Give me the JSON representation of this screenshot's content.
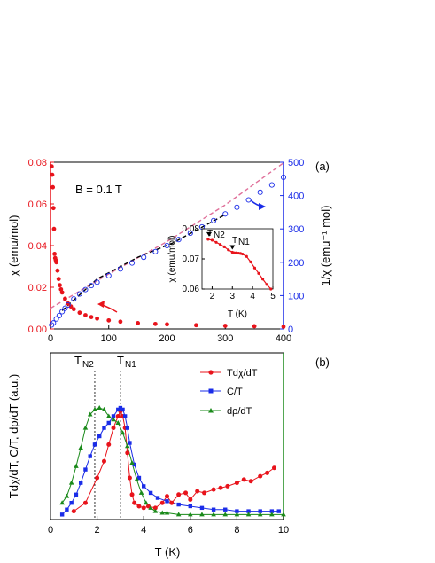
{
  "chart_data": [
    {
      "panel": "(a)",
      "type": "scatter",
      "annotation": "B = 0.1 T",
      "xlim": [
        0,
        400
      ],
      "xticks": [
        "0",
        "100",
        "200",
        "300",
        "400"
      ],
      "ylim_left": [
        0,
        0.08
      ],
      "yticks_left": [
        "0.00",
        "0.02",
        "0.04",
        "0.06",
        "0.08"
      ],
      "ylabel_left": "χ (emu/mol)",
      "ylim_right": [
        0,
        500
      ],
      "yticks_right": [
        "0",
        "100",
        "200",
        "300",
        "400",
        "500"
      ],
      "ylabel_right": "1/χ (emu⁻¹ mol)",
      "colors": {
        "chi": "#e8131b",
        "inv": "#1a2ce8",
        "fit_pink": "#e0709a",
        "fit_black": "#000000"
      },
      "series": [
        {
          "axis": "left",
          "x": [
            2,
            3,
            4,
            5,
            6,
            7,
            8,
            9,
            10,
            12,
            14,
            16,
            18,
            20,
            25,
            30,
            35,
            40,
            50,
            60,
            70,
            80,
            100,
            120,
            150,
            180,
            200,
            250,
            300,
            350,
            400
          ],
          "y": [
            0.078,
            0.074,
            0.068,
            0.058,
            0.048,
            0.036,
            0.034,
            0.033,
            0.032,
            0.028,
            0.024,
            0.021,
            0.019,
            0.0175,
            0.0145,
            0.0122,
            0.0108,
            0.0095,
            0.0078,
            0.0066,
            0.0057,
            0.005,
            0.0041,
            0.0035,
            0.0028,
            0.0024,
            0.0022,
            0.0018,
            0.0015,
            0.0013,
            0.0011
          ]
        },
        {
          "axis": "right",
          "x": [
            2,
            5,
            10,
            15,
            20,
            25,
            30,
            40,
            50,
            60,
            70,
            80,
            100,
            120,
            140,
            160,
            180,
            200,
            220,
            240,
            260,
            280,
            300,
            320,
            340,
            360,
            380,
            400
          ],
          "y": [
            12,
            18,
            30,
            40,
            52,
            62,
            72,
            90,
            105,
            118,
            130,
            140,
            160,
            180,
            198,
            215,
            232,
            250,
            268,
            287,
            306,
            325,
            345,
            365,
            387,
            410,
            432,
            455
          ]
        },
        {
          "axis": "right",
          "x": [
            0,
            100,
            200,
            300,
            400
          ],
          "y": [
            62,
            165,
            262,
            372,
            498
          ]
        },
        {
          "axis": "right",
          "x": [
            20,
            80,
            150,
            210,
            300
          ],
          "y": [
            55,
            150,
            215,
            258,
            343
          ]
        }
      ],
      "inset": {
        "type": "line",
        "xlabel": "T (K)",
        "ylabel": "χ (emu/mol)",
        "xlim": [
          1.5,
          5
        ],
        "xticks": [
          "2",
          "3",
          "4",
          "5"
        ],
        "ylim": [
          0.06,
          0.08
        ],
        "yticks": [
          "0.06",
          "0.07",
          "0.08"
        ],
        "annotations": [
          "T",
          "N2",
          "T",
          "N1"
        ],
        "x": [
          1.8,
          2.0,
          2.2,
          2.4,
          2.6,
          2.8,
          3.0,
          3.1,
          3.2,
          3.3,
          3.4,
          3.5,
          3.7,
          3.9,
          4.1,
          4.3,
          4.5,
          4.7,
          4.9
        ],
        "y": [
          0.0765,
          0.0762,
          0.0755,
          0.0748,
          0.074,
          0.073,
          0.0722,
          0.072,
          0.072,
          0.0719,
          0.0718,
          0.0716,
          0.0708,
          0.069,
          0.067,
          0.0652,
          0.0633,
          0.0615,
          0.06
        ]
      }
    },
    {
      "panel": "(b)",
      "type": "line",
      "xlabel": "T (K)",
      "ylabel": "Tdχ/dT, C/T, dρ/dT (a.u.)",
      "xlim": [
        0,
        10
      ],
      "xticks": [
        "0",
        "2",
        "4",
        "6",
        "8",
        "10"
      ],
      "annotations": [
        "T",
        "N2",
        "T",
        "N1"
      ],
      "markers_at": [
        1.9,
        3.0
      ],
      "series": [
        {
          "name": "Tdχ/dT",
          "color": "#e8131b",
          "x": [
            1.0,
            1.5,
            2.0,
            2.3,
            2.5,
            2.7,
            2.9,
            3.0,
            3.1,
            3.2,
            3.3,
            3.4,
            3.5,
            3.6,
            3.8,
            4.0,
            4.2,
            4.5,
            4.8,
            5.0,
            5.2,
            5.5,
            5.8,
            6.0,
            6.3,
            6.6,
            7.0,
            7.3,
            7.6,
            8.0,
            8.3,
            8.6,
            9.0,
            9.3,
            9.6
          ],
          "y": [
            0.05,
            0.1,
            0.25,
            0.35,
            0.45,
            0.55,
            0.62,
            0.65,
            0.62,
            0.55,
            0.4,
            0.25,
            0.15,
            0.1,
            0.08,
            0.07,
            0.08,
            0.07,
            0.1,
            0.14,
            0.1,
            0.15,
            0.16,
            0.12,
            0.17,
            0.16,
            0.18,
            0.19,
            0.2,
            0.22,
            0.24,
            0.23,
            0.26,
            0.28,
            0.31
          ]
        },
        {
          "name": "C/T",
          "color": "#1a2ce8",
          "x": [
            0.5,
            0.7,
            0.9,
            1.1,
            1.3,
            1.5,
            1.7,
            1.9,
            2.1,
            2.3,
            2.5,
            2.7,
            2.9,
            3.0,
            3.1,
            3.2,
            3.3,
            3.4,
            3.6,
            3.8,
            4.0,
            4.3,
            4.6,
            5.0,
            5.5,
            6.0,
            6.5,
            7.0,
            7.5,
            8.0,
            8.5,
            9.0,
            9.5,
            9.8
          ],
          "y": [
            0.03,
            0.06,
            0.1,
            0.15,
            0.22,
            0.3,
            0.38,
            0.45,
            0.5,
            0.55,
            0.58,
            0.62,
            0.66,
            0.67,
            0.66,
            0.62,
            0.55,
            0.46,
            0.33,
            0.25,
            0.2,
            0.16,
            0.13,
            0.11,
            0.09,
            0.08,
            0.07,
            0.06,
            0.06,
            0.05,
            0.05,
            0.05,
            0.05,
            0.05
          ]
        },
        {
          "name": "dρ/dT",
          "color": "#1a8a1a",
          "x": [
            0.5,
            0.7,
            0.9,
            1.1,
            1.3,
            1.5,
            1.7,
            1.9,
            2.1,
            2.3,
            2.5,
            2.7,
            2.9,
            3.1,
            3.3,
            3.5,
            3.7,
            3.9,
            4.1,
            4.3,
            4.5,
            4.8,
            5.0,
            5.5,
            6.0,
            6.5,
            7.0,
            7.5,
            8.0,
            8.5,
            9.0,
            9.5,
            10.0
          ],
          "y": [
            0.1,
            0.14,
            0.22,
            0.32,
            0.43,
            0.55,
            0.63,
            0.66,
            0.67,
            0.66,
            0.62,
            0.6,
            0.58,
            0.52,
            0.44,
            0.34,
            0.24,
            0.16,
            0.1,
            0.07,
            0.05,
            0.04,
            0.04,
            0.03,
            0.03,
            0.03,
            0.03,
            0.03,
            0.03,
            0.03,
            0.03,
            0.03,
            0.03
          ]
        }
      ]
    }
  ]
}
